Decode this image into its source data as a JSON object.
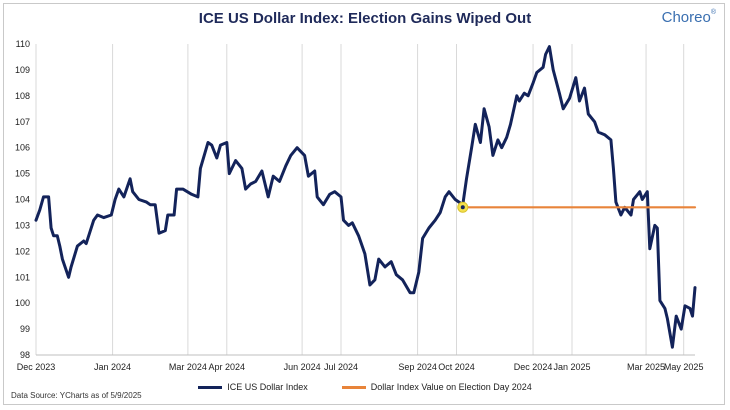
{
  "header": {
    "title": "ICE US Dollar Index: Election Gains Wiped Out",
    "brand": "Choreo"
  },
  "footer": {
    "source": "Data Source: YCharts as of 5/9/2025"
  },
  "colors": {
    "series_main": "#13235a",
    "series_reference": "#e8843a",
    "marker_fill": "#f4e04d",
    "grid": "#d9d9d9"
  },
  "chart_data": {
    "type": "line",
    "title": "ICE US Dollar Index: Election Gains Wiped Out",
    "xlabel": "",
    "ylabel": "",
    "ylim": [
      98,
      110
    ],
    "yticks": [
      98,
      99,
      100,
      101,
      102,
      103,
      104,
      105,
      106,
      107,
      108,
      109,
      110
    ],
    "xlim": [
      "2023-12-01",
      "2025-05-09"
    ],
    "xticks": [
      {
        "date": "2023-12-01",
        "label": "Dec 2023"
      },
      {
        "date": "2024-01-31",
        "label": "Jan 2024"
      },
      {
        "date": "2024-03-31",
        "label": "Mar 2024"
      },
      {
        "date": "2024-05-01",
        "label": "Apr 2024"
      },
      {
        "date": "2024-06-30",
        "label": "Jun 2024"
      },
      {
        "date": "2024-07-31",
        "label": "Jul 2024"
      },
      {
        "date": "2024-09-30",
        "label": "Sep 2024"
      },
      {
        "date": "2024-10-31",
        "label": "Oct 2024"
      },
      {
        "date": "2024-12-31",
        "label": "Dec 2024"
      },
      {
        "date": "2025-01-31",
        "label": "Jan 2025"
      },
      {
        "date": "2025-03-31",
        "label": "Mar 2025"
      },
      {
        "date": "2025-04-30",
        "label": "May 2025"
      }
    ],
    "grid": "vertical",
    "legend_position": "bottom",
    "series": [
      {
        "name": "ICE US Dollar Index",
        "color": "#13235a",
        "points": [
          [
            "2023-12-01",
            103.2
          ],
          [
            "2023-12-04",
            103.6
          ],
          [
            "2023-12-07",
            104.1
          ],
          [
            "2023-12-11",
            104.1
          ],
          [
            "2023-12-13",
            102.9
          ],
          [
            "2023-12-15",
            102.6
          ],
          [
            "2023-12-18",
            102.6
          ],
          [
            "2023-12-20",
            102.2
          ],
          [
            "2023-12-22",
            101.7
          ],
          [
            "2023-12-27",
            101.0
          ],
          [
            "2023-12-29",
            101.4
          ],
          [
            "2024-01-03",
            102.2
          ],
          [
            "2024-01-08",
            102.4
          ],
          [
            "2024-01-10",
            102.3
          ],
          [
            "2024-01-16",
            103.2
          ],
          [
            "2024-01-19",
            103.4
          ],
          [
            "2024-01-24",
            103.3
          ],
          [
            "2024-01-30",
            103.4
          ],
          [
            "2024-02-02",
            104.0
          ],
          [
            "2024-02-05",
            104.4
          ],
          [
            "2024-02-09",
            104.1
          ],
          [
            "2024-02-14",
            104.8
          ],
          [
            "2024-02-16",
            104.3
          ],
          [
            "2024-02-21",
            104.0
          ],
          [
            "2024-02-27",
            103.9
          ],
          [
            "2024-03-01",
            103.8
          ],
          [
            "2024-03-05",
            103.8
          ],
          [
            "2024-03-08",
            102.7
          ],
          [
            "2024-03-13",
            102.8
          ],
          [
            "2024-03-15",
            103.4
          ],
          [
            "2024-03-20",
            103.4
          ],
          [
            "2024-03-22",
            104.4
          ],
          [
            "2024-03-27",
            104.4
          ],
          [
            "2024-04-03",
            104.2
          ],
          [
            "2024-04-08",
            104.1
          ],
          [
            "2024-04-10",
            105.2
          ],
          [
            "2024-04-16",
            106.2
          ],
          [
            "2024-04-19",
            106.1
          ],
          [
            "2024-04-23",
            105.6
          ],
          [
            "2024-04-26",
            106.1
          ],
          [
            "2024-05-01",
            106.2
          ],
          [
            "2024-05-03",
            105.0
          ],
          [
            "2024-05-08",
            105.5
          ],
          [
            "2024-05-13",
            105.2
          ],
          [
            "2024-05-16",
            104.4
          ],
          [
            "2024-05-20",
            104.6
          ],
          [
            "2024-05-24",
            104.7
          ],
          [
            "2024-05-29",
            105.1
          ],
          [
            "2024-06-03",
            104.1
          ],
          [
            "2024-06-07",
            104.9
          ],
          [
            "2024-06-12",
            104.7
          ],
          [
            "2024-06-17",
            105.3
          ],
          [
            "2024-06-21",
            105.7
          ],
          [
            "2024-06-26",
            106.0
          ],
          [
            "2024-06-28",
            105.9
          ],
          [
            "2024-07-02",
            105.7
          ],
          [
            "2024-07-05",
            104.9
          ],
          [
            "2024-07-10",
            105.1
          ],
          [
            "2024-07-12",
            104.1
          ],
          [
            "2024-07-17",
            103.8
          ],
          [
            "2024-07-22",
            104.2
          ],
          [
            "2024-07-26",
            104.3
          ],
          [
            "2024-07-31",
            104.1
          ],
          [
            "2024-08-02",
            103.2
          ],
          [
            "2024-08-06",
            103.0
          ],
          [
            "2024-08-09",
            103.1
          ],
          [
            "2024-08-14",
            102.6
          ],
          [
            "2024-08-19",
            101.9
          ],
          [
            "2024-08-23",
            100.7
          ],
          [
            "2024-08-27",
            100.9
          ],
          [
            "2024-08-30",
            101.7
          ],
          [
            "2024-09-04",
            101.4
          ],
          [
            "2024-09-09",
            101.6
          ],
          [
            "2024-09-13",
            101.1
          ],
          [
            "2024-09-18",
            100.9
          ],
          [
            "2024-09-24",
            100.4
          ],
          [
            "2024-09-27",
            100.4
          ],
          [
            "2024-10-01",
            101.2
          ],
          [
            "2024-10-04",
            102.5
          ],
          [
            "2024-10-09",
            102.9
          ],
          [
            "2024-10-14",
            103.2
          ],
          [
            "2024-10-18",
            103.5
          ],
          [
            "2024-10-22",
            104.1
          ],
          [
            "2024-10-25",
            104.3
          ],
          [
            "2024-10-30",
            104.0
          ],
          [
            "2024-11-05",
            103.8
          ],
          [
            "2024-11-08",
            104.8
          ],
          [
            "2024-11-12",
            106.0
          ],
          [
            "2024-11-15",
            106.9
          ],
          [
            "2024-11-19",
            106.2
          ],
          [
            "2024-11-22",
            107.5
          ],
          [
            "2024-11-26",
            106.8
          ],
          [
            "2024-11-29",
            105.7
          ],
          [
            "2024-12-03",
            106.3
          ],
          [
            "2024-12-06",
            106.0
          ],
          [
            "2024-12-10",
            106.4
          ],
          [
            "2024-12-13",
            106.9
          ],
          [
            "2024-12-18",
            108.0
          ],
          [
            "2024-12-20",
            107.8
          ],
          [
            "2024-12-24",
            108.1
          ],
          [
            "2024-12-27",
            108.0
          ],
          [
            "2024-12-31",
            108.5
          ],
          [
            "2025-01-03",
            108.9
          ],
          [
            "2025-01-08",
            109.1
          ],
          [
            "2025-01-10",
            109.6
          ],
          [
            "2025-01-13",
            109.9
          ],
          [
            "2025-01-16",
            109.0
          ],
          [
            "2025-01-21",
            108.1
          ],
          [
            "2025-01-24",
            107.5
          ],
          [
            "2025-01-29",
            107.9
          ],
          [
            "2025-02-03",
            108.7
          ],
          [
            "2025-02-06",
            107.8
          ],
          [
            "2025-02-10",
            108.3
          ],
          [
            "2025-02-13",
            107.3
          ],
          [
            "2025-02-18",
            107.0
          ],
          [
            "2025-02-21",
            106.6
          ],
          [
            "2025-02-26",
            106.5
          ],
          [
            "2025-03-03",
            106.3
          ],
          [
            "2025-03-05",
            105.2
          ],
          [
            "2025-03-07",
            103.9
          ],
          [
            "2025-03-11",
            103.4
          ],
          [
            "2025-03-14",
            103.7
          ],
          [
            "2025-03-19",
            103.4
          ],
          [
            "2025-03-21",
            104.0
          ],
          [
            "2025-03-26",
            104.3
          ],
          [
            "2025-03-28",
            104.0
          ],
          [
            "2025-04-01",
            104.3
          ],
          [
            "2025-04-03",
            102.1
          ],
          [
            "2025-04-07",
            103.0
          ],
          [
            "2025-04-09",
            102.9
          ],
          [
            "2025-04-11",
            100.1
          ],
          [
            "2025-04-15",
            99.8
          ],
          [
            "2025-04-17",
            99.4
          ],
          [
            "2025-04-21",
            98.3
          ],
          [
            "2025-04-24",
            99.5
          ],
          [
            "2025-04-28",
            99.0
          ],
          [
            "2025-05-01",
            99.9
          ],
          [
            "2025-05-05",
            99.8
          ],
          [
            "2025-05-07",
            99.5
          ],
          [
            "2025-05-09",
            100.6
          ]
        ]
      },
      {
        "name": "Dollar Index Value on Election Day 2024",
        "color": "#e8843a",
        "points": [
          [
            "2024-11-05",
            103.7
          ],
          [
            "2025-05-09",
            103.7
          ]
        ]
      }
    ],
    "annotations": [
      {
        "type": "marker",
        "date": "2024-11-05",
        "value": 103.7
      }
    ]
  }
}
